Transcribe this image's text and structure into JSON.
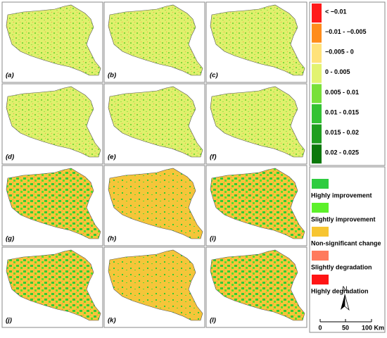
{
  "panels": [
    {
      "label": "(a)"
    },
    {
      "label": "(b)"
    },
    {
      "label": "(c)"
    },
    {
      "label": "(d)"
    },
    {
      "label": "(e)"
    },
    {
      "label": "(f)"
    },
    {
      "label": "(g)"
    },
    {
      "label": "(h)"
    },
    {
      "label": "(i)"
    },
    {
      "label": "(j)"
    },
    {
      "label": "(k)"
    },
    {
      "label": "(l)"
    }
  ],
  "legend_trend": {
    "items": [
      {
        "label": "< −0.01",
        "color": "#ff1a1a"
      },
      {
        "label": "−0.01 - −0.005",
        "color": "#ff8c1a"
      },
      {
        "label": "−0.005 - 0",
        "color": "#ffe27a"
      },
      {
        "label": "0 - 0.005",
        "color": "#e2f370"
      },
      {
        "label": "0.005 - 0.01",
        "color": "#78e03a"
      },
      {
        "label": "0.01 - 0.015",
        "color": "#33c233"
      },
      {
        "label": "0.015 - 0.02",
        "color": "#1f9e1f"
      },
      {
        "label": "0.02 - 0.025",
        "color": "#0b780b"
      }
    ]
  },
  "legend_change": {
    "items": [
      {
        "label": "Highly  improvement",
        "color": "#2ecc40"
      },
      {
        "label": "Slightly  improvement",
        "color": "#5cf02a"
      },
      {
        "label": "Non-significant change",
        "color": "#f7c531"
      },
      {
        "label": "Slightly degradation",
        "color": "#ff7a5c"
      },
      {
        "label": "Highly  degradation",
        "color": "#ff1414"
      }
    ]
  },
  "north": "N",
  "scale": {
    "ticks": [
      "0",
      "50",
      "100 Km"
    ]
  }
}
